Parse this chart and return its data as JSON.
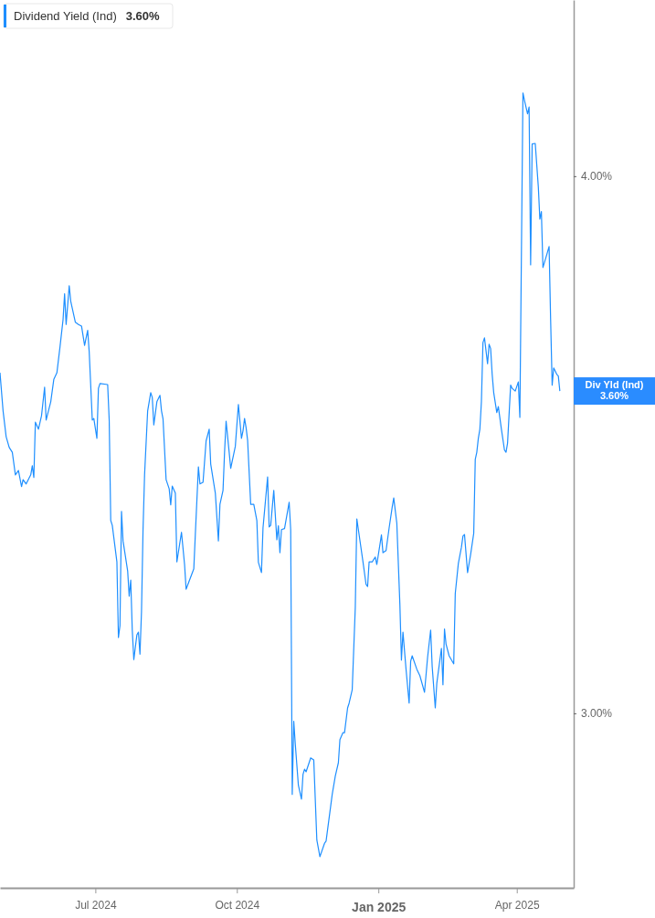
{
  "chart_data": {
    "type": "line",
    "x": [
      "2024-04-30",
      "2024-05-02",
      "2024-05-04",
      "2024-05-06",
      "2024-05-08",
      "2024-05-10",
      "2024-05-12",
      "2024-05-14",
      "2024-05-15",
      "2024-05-17",
      "2024-05-20",
      "2024-05-21",
      "2024-05-22",
      "2024-05-23",
      "2024-05-25",
      "2024-05-27",
      "2024-05-29",
      "2024-05-30",
      "2024-06-02",
      "2024-06-04",
      "2024-06-06",
      "2024-06-08",
      "2024-06-10",
      "2024-06-11",
      "2024-06-12",
      "2024-06-14",
      "2024-06-15",
      "2024-06-18",
      "2024-06-20",
      "2024-06-22",
      "2024-06-24",
      "2024-06-26",
      "2024-06-27",
      "2024-06-29",
      "2024-06-30",
      "2024-07-02",
      "2024-07-03",
      "2024-07-04",
      "2024-07-09",
      "2024-07-10",
      "2024-07-11",
      "2024-07-12",
      "2024-07-15",
      "2024-07-16",
      "2024-07-17",
      "2024-07-18",
      "2024-07-19",
      "2024-07-22",
      "2024-07-23",
      "2024-07-24",
      "2024-07-25",
      "2024-07-26",
      "2024-07-28",
      "2024-07-29",
      "2024-07-30",
      "2024-07-31",
      "2024-08-01",
      "2024-08-02",
      "2024-08-04",
      "2024-08-06",
      "2024-08-07",
      "2024-08-08",
      "2024-08-10",
      "2024-08-12",
      "2024-08-13",
      "2024-08-14",
      "2024-08-16",
      "2024-08-18",
      "2024-08-19",
      "2024-08-20",
      "2024-08-22",
      "2024-08-23",
      "2024-08-26",
      "2024-08-28",
      "2024-08-29",
      "2024-09-03",
      "2024-09-04",
      "2024-09-06",
      "2024-09-07",
      "2024-09-09",
      "2024-09-11",
      "2024-09-13",
      "2024-09-14",
      "2024-09-17",
      "2024-09-19",
      "2024-09-20",
      "2024-09-22",
      "2024-09-23",
      "2024-09-24",
      "2024-09-26",
      "2024-09-27",
      "2024-09-30",
      "2024-10-02",
      "2024-10-04",
      "2024-10-05",
      "2024-10-06",
      "2024-10-07",
      "2024-10-08",
      "2024-10-10",
      "2024-10-12",
      "2024-10-14",
      "2024-10-15",
      "2024-10-17",
      "2024-10-18",
      "2024-10-21",
      "2024-10-22",
      "2024-10-23",
      "2024-10-25",
      "2024-10-27",
      "2024-10-28",
      "2024-10-29",
      "2024-10-30",
      "2024-11-01",
      "2024-11-04",
      "2024-11-05",
      "2024-11-06",
      "2024-11-07",
      "2024-11-08",
      "2024-11-10",
      "2024-11-12",
      "2024-11-13",
      "2024-11-14",
      "2024-11-15",
      "2024-11-18",
      "2024-11-20",
      "2024-11-22",
      "2024-11-24",
      "2024-11-27",
      "2024-11-28",
      "2024-12-02",
      "2024-12-04",
      "2024-12-06",
      "2024-12-07",
      "2024-12-09",
      "2024-12-10",
      "2024-12-12",
      "2024-12-13",
      "2024-12-15",
      "2024-12-17",
      "2024-12-18",
      "2024-12-19",
      "2024-12-22",
      "2024-12-24",
      "2024-12-25",
      "2024-12-26",
      "2024-12-28",
      "2024-12-30",
      "2024-12-31",
      "2025-01-03",
      "2025-01-04",
      "2025-01-06",
      "2025-01-08",
      "2025-01-10",
      "2025-01-11",
      "2025-01-13",
      "2025-01-15",
      "2025-01-16",
      "2025-01-17",
      "2025-01-19",
      "2025-01-21",
      "2025-01-22",
      "2025-01-23",
      "2025-01-26",
      "2025-01-28",
      "2025-01-31",
      "2025-02-02",
      "2025-02-04",
      "2025-02-05",
      "2025-02-07",
      "2025-02-08",
      "2025-02-10",
      "2025-02-11",
      "2025-02-12",
      "2025-02-13",
      "2025-02-14",
      "2025-02-16",
      "2025-02-19",
      "2025-02-20",
      "2025-02-22",
      "2025-02-24",
      "2025-02-25",
      "2025-02-26",
      "2025-02-28",
      "2025-03-02",
      "2025-03-04",
      "2025-03-05",
      "2025-03-06",
      "2025-03-07",
      "2025-03-08",
      "2025-03-09",
      "2025-03-10",
      "2025-03-11",
      "2025-03-13",
      "2025-03-14",
      "2025-03-15",
      "2025-03-16",
      "2025-03-17",
      "2025-03-19",
      "2025-03-20",
      "2025-03-22",
      "2025-03-24",
      "2025-03-25",
      "2025-03-26",
      "2025-03-28",
      "2025-03-29",
      "2025-03-31",
      "2025-04-02",
      "2025-04-03",
      "2025-04-05",
      "2025-04-06",
      "2025-04-08",
      "2025-04-09",
      "2025-04-10",
      "2025-04-11",
      "2025-04-13",
      "2025-04-15",
      "2025-04-16",
      "2025-04-17",
      "2025-04-18",
      "2025-04-20",
      "2025-04-22",
      "2025-04-23",
      "2025-04-24",
      "2025-04-25",
      "2025-04-27",
      "2025-04-28",
      "2025-04-29"
    ],
    "series": [
      {
        "name": "Dividend Yield (Ind)",
        "color": "#1e8fff",
        "values": [
          3.634,
          3.563,
          3.515,
          3.495,
          3.486,
          3.444,
          3.452,
          3.422,
          3.435,
          3.427,
          3.444,
          3.461,
          3.439,
          3.542,
          3.529,
          3.554,
          3.607,
          3.546,
          3.58,
          3.622,
          3.634,
          3.682,
          3.733,
          3.781,
          3.724,
          3.796,
          3.767,
          3.728,
          3.724,
          3.721,
          3.685,
          3.713,
          3.673,
          3.546,
          3.549,
          3.512,
          3.605,
          3.614,
          3.612,
          3.546,
          3.359,
          3.35,
          3.282,
          3.141,
          3.163,
          3.376,
          3.321,
          3.265,
          3.218,
          3.248,
          3.155,
          3.1,
          3.146,
          3.151,
          3.11,
          3.189,
          3.342,
          3.444,
          3.563,
          3.597,
          3.588,
          3.537,
          3.58,
          3.592,
          3.563,
          3.548,
          3.435,
          3.418,
          3.388,
          3.423,
          3.41,
          3.282,
          3.337,
          3.277,
          3.231,
          3.269,
          3.333,
          3.459,
          3.427,
          3.43,
          3.507,
          3.529,
          3.464,
          3.41,
          3.321,
          3.389,
          3.415,
          3.486,
          3.544,
          3.486,
          3.456,
          3.497,
          3.575,
          3.512,
          3.526,
          3.549,
          3.532,
          3.508,
          3.389,
          3.389,
          3.359,
          3.281,
          3.262,
          3.345,
          3.44,
          3.347,
          3.35,
          3.415,
          3.323,
          3.349,
          3.299,
          3.342,
          3.344,
          3.393,
          3.342,
          2.849,
          2.985,
          2.942,
          2.866,
          2.84,
          2.886,
          2.896,
          2.891,
          2.917,
          2.913,
          2.764,
          2.733,
          2.758,
          2.762,
          2.849,
          2.883,
          2.908,
          2.951,
          2.964,
          2.964,
          3.01,
          3.019,
          3.044,
          3.197,
          3.362,
          3.342,
          3.282,
          3.24,
          3.236,
          3.282,
          3.282,
          3.291,
          3.277,
          3.332,
          3.299,
          3.303,
          3.345,
          3.384,
          3.401,
          3.354,
          3.202,
          3.099,
          3.151,
          3.082,
          3.019,
          3.097,
          3.107,
          3.082,
          3.07,
          3.039,
          3.104,
          3.155,
          3.087,
          3.01,
          3.056,
          3.099,
          3.121,
          3.053,
          3.157,
          3.129,
          3.107,
          3.092,
          3.223,
          3.279,
          3.309,
          3.33,
          3.333,
          3.262,
          3.296,
          3.335,
          3.473,
          3.486,
          3.512,
          3.529,
          3.58,
          3.69,
          3.699,
          3.651,
          3.687,
          3.679,
          3.631,
          3.597,
          3.56,
          3.571,
          3.529,
          3.49,
          3.486,
          3.503,
          3.611,
          3.605,
          3.6,
          3.617,
          3.551,
          4.155,
          4.141,
          4.116,
          4.129,
          3.835,
          4.06,
          4.061,
          3.98,
          3.92,
          3.934,
          3.83,
          3.849,
          3.869,
          3.733,
          3.611,
          3.643,
          3.631,
          3.628,
          3.6
        ]
      }
    ],
    "xlim": [
      "2024-04-30",
      "2025-05-08"
    ],
    "xticks": [
      {
        "value": "2024-07-01",
        "label": "Jul 2024"
      },
      {
        "value": "2024-10-01",
        "label": "Oct 2024"
      },
      {
        "value": "2025-01-01",
        "label": "Jan 2025"
      },
      {
        "value": "2025-04-01",
        "label": "Apr 2025"
      }
    ],
    "ylim": [
      2.675,
      4.328
    ],
    "yticks": [
      {
        "value": 3,
        "label": "3.00%"
      },
      {
        "value": 4,
        "label": "4.00%"
      }
    ],
    "grid": false,
    "legend": "top left",
    "annotations": [
      "3.60%",
      "Div Yld (Ind) 3.60%"
    ]
  }
}
